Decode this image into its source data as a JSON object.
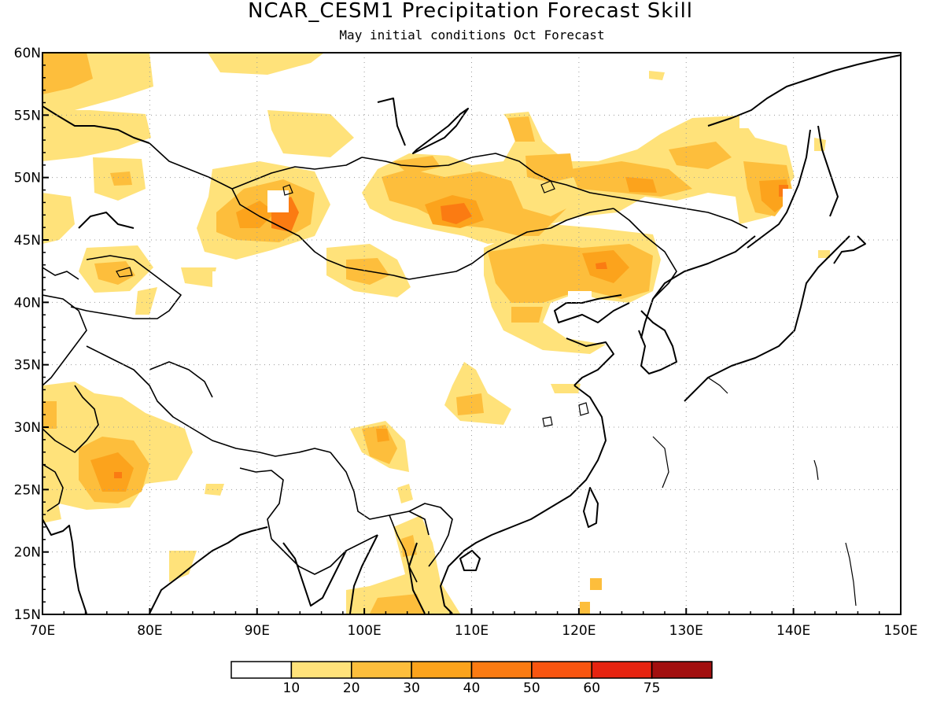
{
  "title": "NCAR_CESM1 Precipitation Forecast Skill",
  "subtitle": "May initial conditions  Oct Forecast",
  "lon_labels": [
    "70E",
    "80E",
    "90E",
    "100E",
    "110E",
    "120E",
    "130E",
    "140E",
    "150E"
  ],
  "lat_labels": [
    "15N",
    "20N",
    "25N",
    "30N",
    "35N",
    "40N",
    "45N",
    "50N",
    "55N",
    "60N"
  ],
  "colorbar": {
    "colors": [
      "#ffffff",
      "#ffe27a",
      "#fdbe3c",
      "#fca31c",
      "#fb7b12",
      "#f85510",
      "#e62410",
      "#a20f0f"
    ],
    "labels": [
      "10",
      "20",
      "30",
      "40",
      "50",
      "60",
      "75"
    ]
  },
  "chart_data": {
    "type": "heatmap",
    "title": "NCAR_CESM1 Precipitation Forecast Skill",
    "subtitle": "May initial conditions  Oct Forecast",
    "lon_range": [
      70,
      150
    ],
    "lat_range": [
      15,
      60
    ],
    "grid": true,
    "levels": [
      10,
      20,
      30,
      40,
      50,
      60,
      75
    ],
    "skill_regions": [
      {
        "lon": 72,
        "lat": 58,
        "value": 25
      },
      {
        "lon": 79,
        "lat": 57,
        "value": 12
      },
      {
        "lon": 97,
        "lat": 59.5,
        "value": 12
      },
      {
        "lon": 77,
        "lat": 53.5,
        "value": 15
      },
      {
        "lon": 95,
        "lat": 53.5,
        "value": 14
      },
      {
        "lon": 77,
        "lat": 50,
        "value": 15
      },
      {
        "lon": 71,
        "lat": 47,
        "value": 14
      },
      {
        "lon": 80,
        "lat": 42.5,
        "value": 18
      },
      {
        "lon": 92,
        "lat": 46.5,
        "value": 40
      },
      {
        "lon": 98,
        "lat": 42.5,
        "value": 22
      },
      {
        "lon": 108.5,
        "lat": 47.5,
        "value": 45
      },
      {
        "lon": 106,
        "lat": 50.5,
        "value": 25
      },
      {
        "lon": 118,
        "lat": 49.5,
        "value": 22
      },
      {
        "lon": 130,
        "lat": 50.5,
        "value": 24
      },
      {
        "lon": 138,
        "lat": 48,
        "value": 32
      },
      {
        "lon": 122,
        "lat": 42.5,
        "value": 40
      },
      {
        "lon": 113,
        "lat": 42,
        "value": 22
      },
      {
        "lon": 77,
        "lat": 26,
        "value": 42
      },
      {
        "lon": 71,
        "lat": 32,
        "value": 16
      },
      {
        "lon": 102,
        "lat": 29.5,
        "value": 28
      },
      {
        "lon": 107,
        "lat": 33.5,
        "value": 15
      },
      {
        "lon": 103,
        "lat": 17,
        "value": 20
      },
      {
        "lon": 106,
        "lat": 21,
        "value": 15
      }
    ]
  }
}
